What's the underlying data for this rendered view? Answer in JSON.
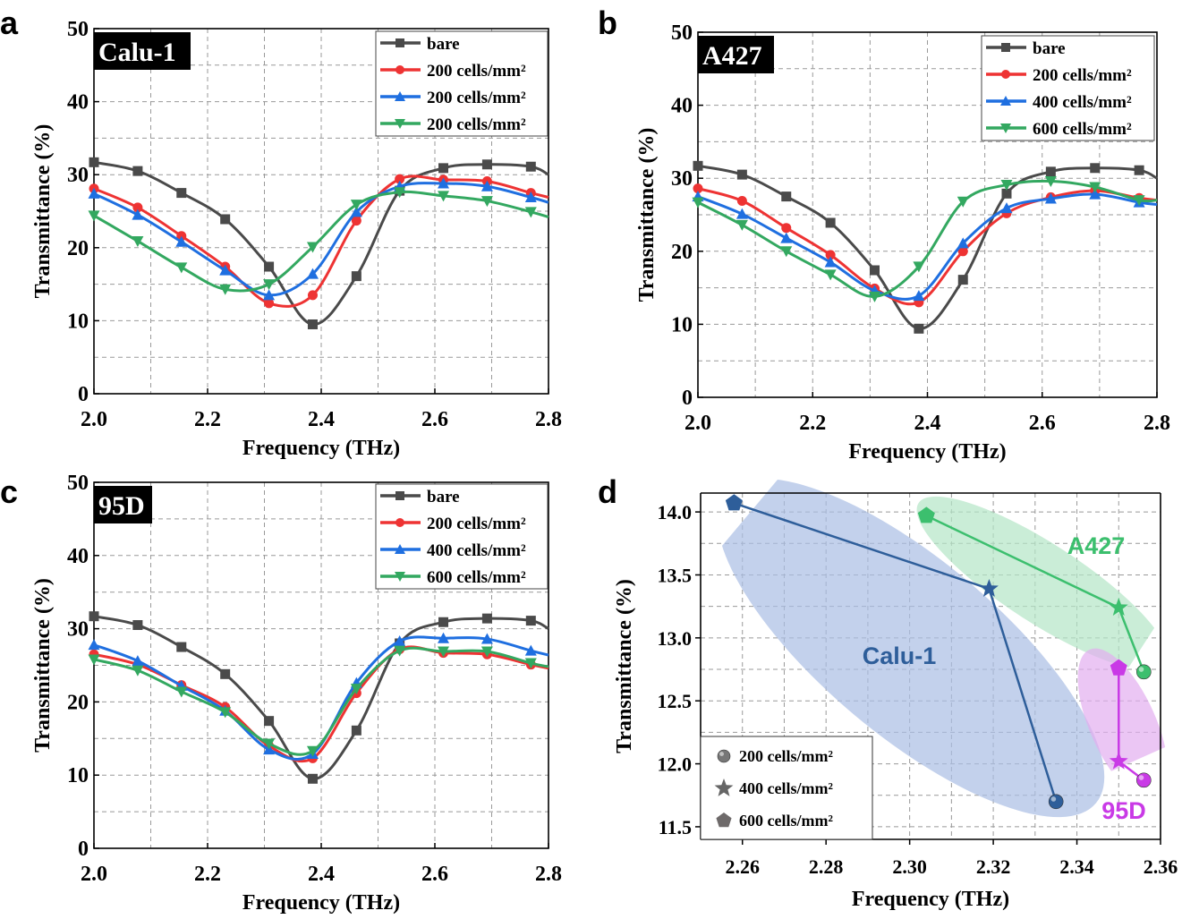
{
  "chart_data": [
    {
      "panel": "a",
      "type": "line",
      "cell_line": "Calu-1",
      "xlabel": "Frequency (THz)",
      "ylabel": "Transmittance (%)",
      "xlim": [
        2.0,
        2.8
      ],
      "ylim": [
        0,
        50
      ],
      "xticks": [
        "2.0",
        "2.2",
        "2.4",
        "2.6",
        "2.8"
      ],
      "yticks": [
        "0",
        "10",
        "20",
        "30",
        "40",
        "50"
      ],
      "grid": true,
      "legend": "top-right",
      "x": [
        2.0,
        2.077,
        2.154,
        2.231,
        2.308,
        2.385,
        2.462,
        2.538,
        2.615,
        2.692,
        2.769,
        2.8
      ],
      "series": [
        {
          "name": "bare",
          "color": "#4a4a4a",
          "marker": "square",
          "values": [
            31.7,
            30.5,
            27.5,
            23.9,
            17.4,
            9.5,
            16.1,
            27.8,
            30.9,
            31.4,
            31.1,
            30.0
          ]
        },
        {
          "name": "200  cells/mm²",
          "color": "#ee3333",
          "marker": "circle",
          "values": [
            28.1,
            25.5,
            21.6,
            17.4,
            12.4,
            13.5,
            23.7,
            29.4,
            29.3,
            29.1,
            27.5,
            26.9
          ]
        },
        {
          "name": "200  cells/mm²",
          "color": "#1f6fe0",
          "marker": "triangle-up",
          "values": [
            27.4,
            24.5,
            20.8,
            16.9,
            13.5,
            16.4,
            24.9,
            28.4,
            28.8,
            28.4,
            26.9,
            26.2
          ]
        },
        {
          "name": "200  cells/mm²",
          "color": "#33a860",
          "marker": "triangle-down",
          "values": [
            24.4,
            20.9,
            17.3,
            14.3,
            15.0,
            20.1,
            25.9,
            27.6,
            27.1,
            26.4,
            24.9,
            24.2
          ]
        }
      ]
    },
    {
      "panel": "b",
      "type": "line",
      "cell_line": "A427",
      "xlabel": "Frequency (THz)",
      "ylabel": "Transmittance (%)",
      "xlim": [
        2.0,
        2.8
      ],
      "ylim": [
        0,
        50
      ],
      "xticks": [
        "2.0",
        "2.2",
        "2.4",
        "2.6",
        "2.8"
      ],
      "yticks": [
        "0",
        "10",
        "20",
        "30",
        "40",
        "50"
      ],
      "grid": true,
      "legend": "top-right",
      "x": [
        2.0,
        2.077,
        2.154,
        2.231,
        2.308,
        2.385,
        2.462,
        2.538,
        2.615,
        2.692,
        2.769,
        2.8
      ],
      "series": [
        {
          "name": "bare",
          "color": "#4a4a4a",
          "marker": "square",
          "values": [
            31.7,
            30.5,
            27.5,
            23.9,
            17.4,
            9.4,
            16.1,
            27.9,
            30.9,
            31.4,
            31.1,
            30.0
          ]
        },
        {
          "name": "200  cells/mm²",
          "color": "#ee3333",
          "marker": "circle",
          "values": [
            28.6,
            26.9,
            23.2,
            19.5,
            14.9,
            13.0,
            20.0,
            25.2,
            27.4,
            28.3,
            27.3,
            27.0
          ]
        },
        {
          "name": "400  cells/mm²",
          "color": "#1f6fe0",
          "marker": "triangle-up",
          "values": [
            27.5,
            25.1,
            21.8,
            18.5,
            14.6,
            13.9,
            21.1,
            25.9,
            27.2,
            27.8,
            26.7,
            26.4
          ]
        },
        {
          "name": "600  cells/mm²",
          "color": "#33a860",
          "marker": "triangle-down",
          "values": [
            26.7,
            23.6,
            20.0,
            16.8,
            13.8,
            17.9,
            26.8,
            29.1,
            29.6,
            28.8,
            27.0,
            27.0
          ]
        }
      ]
    },
    {
      "panel": "c",
      "type": "line",
      "cell_line": "95D",
      "xlabel": "Frequency (THz)",
      "ylabel": "Transmittance (%)",
      "xlim": [
        2.0,
        2.8
      ],
      "ylim": [
        0,
        50
      ],
      "xticks": [
        "2.0",
        "2.2",
        "2.4",
        "2.6",
        "2.8"
      ],
      "yticks": [
        "0",
        "10",
        "20",
        "30",
        "40",
        "50"
      ],
      "grid": true,
      "legend": "top-right",
      "x": [
        2.0,
        2.077,
        2.154,
        2.231,
        2.308,
        2.385,
        2.462,
        2.538,
        2.615,
        2.692,
        2.769,
        2.8
      ],
      "series": [
        {
          "name": "bare",
          "color": "#4a4a4a",
          "marker": "square",
          "values": [
            31.7,
            30.5,
            27.5,
            23.8,
            17.4,
            9.5,
            16.1,
            28.0,
            30.9,
            31.4,
            31.1,
            30.0
          ]
        },
        {
          "name": "200  cells/mm²",
          "color": "#ee3333",
          "marker": "circle",
          "values": [
            26.5,
            25.1,
            22.3,
            19.3,
            14.0,
            12.3,
            21.2,
            27.2,
            26.7,
            26.5,
            25.1,
            24.6
          ]
        },
        {
          "name": "400  cells/mm²",
          "color": "#1f6fe0",
          "marker": "triangle-up",
          "values": [
            27.8,
            25.6,
            22.2,
            18.8,
            13.5,
            12.9,
            22.6,
            28.3,
            28.7,
            28.6,
            27.0,
            26.4
          ]
        },
        {
          "name": "600  cells/mm²",
          "color": "#33a860",
          "marker": "triangle-down",
          "values": [
            25.8,
            24.3,
            21.4,
            18.6,
            14.3,
            13.3,
            21.8,
            27.0,
            26.9,
            26.9,
            25.3,
            24.8
          ]
        }
      ]
    },
    {
      "panel": "d",
      "type": "scatter",
      "xlabel": "Frequency (THz)",
      "ylabel": "Transmittance (%)",
      "xlim": [
        2.25,
        2.36
      ],
      "ylim": [
        11.4,
        14.15
      ],
      "xticks": [
        "2.26",
        "2.28",
        "2.30",
        "2.32",
        "2.34",
        "2.36"
      ],
      "yticks": [
        "11.5",
        "12.0",
        "12.5",
        "13.0",
        "13.5",
        "14.0"
      ],
      "grid": true,
      "legend": "bottom-left",
      "legend_entries": [
        {
          "label": "200 cells/mm²",
          "marker": "sphere"
        },
        {
          "label": "400 cells/mm²",
          "marker": "star"
        },
        {
          "label": "600 cells/mm²",
          "marker": "pentagon"
        }
      ],
      "series": [
        {
          "name": "Calu-1",
          "color": "#2e5e9a",
          "fill": "#a9bee4",
          "points": [
            {
              "density": 600,
              "x": 2.258,
              "y": 14.07
            },
            {
              "density": 400,
              "x": 2.319,
              "y": 13.39
            },
            {
              "density": 200,
              "x": 2.335,
              "y": 11.7
            }
          ]
        },
        {
          "name": "A427",
          "color": "#3cbf6e",
          "fill": "#b3e6c6",
          "points": [
            {
              "density": 600,
              "x": 2.304,
              "y": 13.97
            },
            {
              "density": 400,
              "x": 2.35,
              "y": 13.24
            },
            {
              "density": 200,
              "x": 2.356,
              "y": 12.73
            }
          ]
        },
        {
          "name": "95D",
          "color": "#c93ae6",
          "fill": "#e2aef0",
          "points": [
            {
              "density": 600,
              "x": 2.35,
              "y": 12.76
            },
            {
              "density": 400,
              "x": 2.35,
              "y": 12.02
            },
            {
              "density": 200,
              "x": 2.356,
              "y": 11.87
            }
          ]
        }
      ]
    }
  ]
}
